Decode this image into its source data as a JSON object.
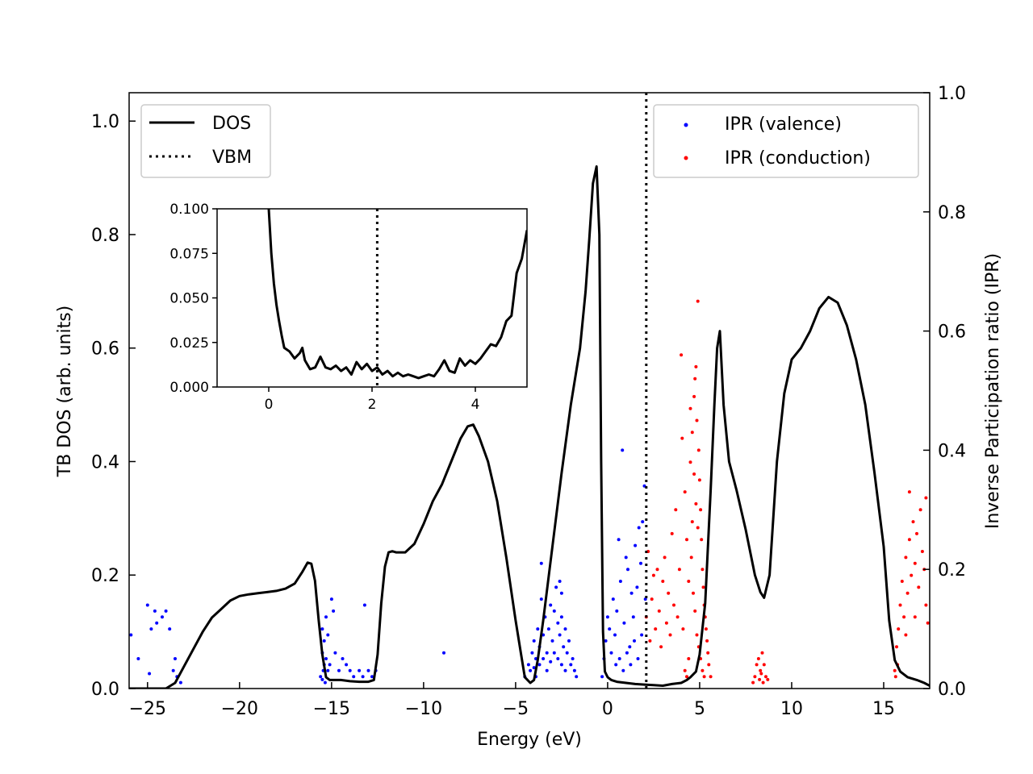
{
  "chart_data": {
    "type": "line",
    "xlabel": "Energy (eV)",
    "ylabel": "TB DOS (arb. units)",
    "y2label": "Inverse Participation ratio (IPR)",
    "xlim": [
      -26,
      17.5
    ],
    "ylim": [
      0,
      1.05
    ],
    "y2lim": [
      0,
      1.0
    ],
    "xticks": [
      -25,
      -20,
      -15,
      -10,
      -5,
      0,
      5,
      10,
      15
    ],
    "xtick_labels": [
      "−25",
      "−20",
      "−15",
      "−10",
      "−5",
      "0",
      "5",
      "10",
      "15"
    ],
    "yticks": [
      0.0,
      0.2,
      0.4,
      0.6,
      0.8,
      1.0
    ],
    "ytick_labels": [
      "0.0",
      "0.2",
      "0.4",
      "0.6",
      "0.8",
      "1.0"
    ],
    "y2ticks": [
      0.0,
      0.2,
      0.4,
      0.6,
      0.8,
      1.0
    ],
    "y2tick_labels": [
      "0.0",
      "0.2",
      "0.4",
      "0.6",
      "0.8",
      "1.0"
    ],
    "vbm": 2.1,
    "legend_left": {
      "placement": "upper-left",
      "entries": [
        {
          "label": "DOS",
          "style": "solid",
          "color": "#000000"
        },
        {
          "label": "VBM",
          "style": "dotted",
          "color": "#000000"
        }
      ]
    },
    "legend_right": {
      "placement": "upper-right",
      "entries": [
        {
          "label": "IPR (valence)",
          "color": "#0000ff"
        },
        {
          "label": "IPR (conduction)",
          "color": "#ff0000"
        }
      ]
    },
    "dos": {
      "x": [
        -26.0,
        -24.0,
        -23.5,
        -23.0,
        -22.5,
        -22.0,
        -21.5,
        -21.0,
        -20.5,
        -20.0,
        -19.5,
        -19.0,
        -18.5,
        -18.0,
        -17.5,
        -17.0,
        -16.6,
        -16.3,
        -16.1,
        -15.9,
        -15.7,
        -15.5,
        -15.3,
        -15.1,
        -14.8,
        -14.5,
        -14.0,
        -13.5,
        -13.0,
        -12.7,
        -12.5,
        -12.3,
        -12.1,
        -11.9,
        -11.7,
        -11.5,
        -11.0,
        -10.5,
        -10.0,
        -9.5,
        -9.0,
        -8.5,
        -8.0,
        -7.6,
        -7.3,
        -7.0,
        -6.5,
        -6.0,
        -5.5,
        -5.0,
        -4.7,
        -4.5,
        -4.2,
        -4.0,
        -3.8,
        -3.5,
        -3.0,
        -2.5,
        -2.0,
        -1.5,
        -1.2,
        -1.0,
        -0.8,
        -0.6,
        -0.45,
        -0.35,
        -0.25,
        -0.15,
        0.0,
        0.2,
        0.5,
        1.0,
        1.5,
        2.0,
        2.5,
        3.0,
        3.5,
        4.0,
        4.3,
        4.5,
        4.8,
        5.0,
        5.3,
        5.6,
        5.8,
        5.95,
        6.1,
        6.3,
        6.6,
        7.0,
        7.5,
        8.0,
        8.3,
        8.5,
        8.8,
        9.2,
        9.6,
        10.0,
        10.5,
        11.0,
        11.5,
        12.0,
        12.5,
        13.0,
        13.5,
        14.0,
        14.5,
        15.0,
        15.3,
        15.6,
        15.9,
        16.3,
        16.8,
        17.2,
        17.5
      ],
      "y": [
        0.0,
        0.0,
        0.01,
        0.04,
        0.07,
        0.1,
        0.125,
        0.14,
        0.155,
        0.163,
        0.166,
        0.168,
        0.17,
        0.172,
        0.176,
        0.185,
        0.205,
        0.222,
        0.22,
        0.19,
        0.12,
        0.06,
        0.02,
        0.015,
        0.015,
        0.015,
        0.013,
        0.012,
        0.012,
        0.015,
        0.06,
        0.15,
        0.215,
        0.24,
        0.242,
        0.24,
        0.24,
        0.255,
        0.29,
        0.33,
        0.36,
        0.4,
        0.44,
        0.462,
        0.465,
        0.445,
        0.4,
        0.33,
        0.23,
        0.12,
        0.06,
        0.02,
        0.01,
        0.015,
        0.05,
        0.12,
        0.25,
        0.38,
        0.5,
        0.6,
        0.7,
        0.79,
        0.89,
        0.92,
        0.8,
        0.4,
        0.1,
        0.03,
        0.02,
        0.015,
        0.012,
        0.01,
        0.008,
        0.007,
        0.006,
        0.005,
        0.008,
        0.01,
        0.015,
        0.02,
        0.03,
        0.06,
        0.15,
        0.35,
        0.5,
        0.6,
        0.63,
        0.5,
        0.4,
        0.35,
        0.28,
        0.2,
        0.17,
        0.16,
        0.2,
        0.4,
        0.52,
        0.58,
        0.6,
        0.63,
        0.67,
        0.69,
        0.68,
        0.64,
        0.58,
        0.5,
        0.38,
        0.25,
        0.12,
        0.05,
        0.03,
        0.02,
        0.015,
        0.01,
        0.005
      ]
    },
    "inset": {
      "xlim": [
        -1,
        5
      ],
      "ylim": [
        0,
        0.1
      ],
      "xticks": [
        0,
        2,
        4
      ],
      "xtick_labels": [
        "0",
        "2",
        "4"
      ],
      "yticks": [
        0.0,
        0.025,
        0.05,
        0.075,
        0.1
      ],
      "ytick_labels": [
        "0.000",
        "0.025",
        "0.050",
        "0.075",
        "0.100"
      ],
      "vbm": 2.1,
      "x": [
        0.0,
        0.05,
        0.1,
        0.15,
        0.2,
        0.25,
        0.3,
        0.4,
        0.5,
        0.6,
        0.65,
        0.7,
        0.8,
        0.9,
        1.0,
        1.1,
        1.2,
        1.3,
        1.4,
        1.5,
        1.6,
        1.7,
        1.8,
        1.9,
        2.0,
        2.1,
        2.2,
        2.3,
        2.4,
        2.5,
        2.6,
        2.7,
        2.8,
        2.9,
        3.0,
        3.1,
        3.2,
        3.3,
        3.4,
        3.5,
        3.6,
        3.7,
        3.8,
        3.9,
        4.0,
        4.1,
        4.2,
        4.3,
        4.4,
        4.5,
        4.6,
        4.7,
        4.8,
        4.9,
        5.0
      ],
      "y": [
        0.1,
        0.075,
        0.058,
        0.046,
        0.037,
        0.029,
        0.022,
        0.02,
        0.016,
        0.019,
        0.022,
        0.015,
        0.01,
        0.011,
        0.017,
        0.011,
        0.01,
        0.012,
        0.009,
        0.011,
        0.007,
        0.014,
        0.01,
        0.013,
        0.009,
        0.011,
        0.007,
        0.009,
        0.006,
        0.008,
        0.006,
        0.007,
        0.006,
        0.005,
        0.006,
        0.007,
        0.006,
        0.01,
        0.015,
        0.009,
        0.008,
        0.016,
        0.012,
        0.015,
        0.013,
        0.016,
        0.02,
        0.024,
        0.023,
        0.028,
        0.037,
        0.04,
        0.064,
        0.072,
        0.088
      ]
    },
    "ipr_valence": {
      "points": [
        [
          -25.9,
          0.09
        ],
        [
          -25.5,
          0.05
        ],
        [
          -25.0,
          0.14
        ],
        [
          -24.8,
          0.1
        ],
        [
          -24.6,
          0.13
        ],
        [
          -24.5,
          0.11
        ],
        [
          -24.2,
          0.12
        ],
        [
          -24.0,
          0.13
        ],
        [
          -23.8,
          0.1
        ],
        [
          -23.6,
          0.03
        ],
        [
          -23.5,
          0.05
        ],
        [
          -23.4,
          0.02
        ],
        [
          -23.2,
          0.01
        ],
        [
          -24.9,
          0.025
        ],
        [
          -15.5,
          0.1
        ],
        [
          -15.4,
          0.08
        ],
        [
          -15.3,
          0.12
        ],
        [
          -15.2,
          0.09
        ],
        [
          -15.0,
          0.15
        ],
        [
          -14.9,
          0.13
        ],
        [
          -15.5,
          0.06
        ],
        [
          -15.4,
          0.04
        ],
        [
          -15.3,
          0.05
        ],
        [
          -15.2,
          0.03
        ],
        [
          -15.1,
          0.04
        ],
        [
          -14.8,
          0.06
        ],
        [
          -14.6,
          0.03
        ],
        [
          -14.4,
          0.05
        ],
        [
          -14.2,
          0.04
        ],
        [
          -14.0,
          0.03
        ],
        [
          -13.8,
          0.02
        ],
        [
          -13.5,
          0.03
        ],
        [
          -13.3,
          0.02
        ],
        [
          -13.2,
          0.14
        ],
        [
          -13.0,
          0.03
        ],
        [
          -12.8,
          0.02
        ],
        [
          -12.6,
          0.03
        ],
        [
          -15.6,
          0.02
        ],
        [
          -15.5,
          0.015
        ],
        [
          -15.45,
          0.03
        ],
        [
          -15.35,
          0.01
        ],
        [
          -8.9,
          0.06
        ],
        [
          -4.5,
          0.02
        ],
        [
          -4.3,
          0.04
        ],
        [
          -4.1,
          0.06
        ],
        [
          -4.0,
          0.08
        ],
        [
          -3.9,
          0.05
        ],
        [
          -3.8,
          0.1
        ],
        [
          -3.7,
          0.07
        ],
        [
          -3.6,
          0.21
        ],
        [
          -3.5,
          0.09
        ],
        [
          -3.4,
          0.12
        ],
        [
          -3.3,
          0.06
        ],
        [
          -3.2,
          0.1
        ],
        [
          -3.1,
          0.14
        ],
        [
          -3.0,
          0.08
        ],
        [
          -2.9,
          0.13
        ],
        [
          -2.8,
          0.17
        ],
        [
          -2.7,
          0.11
        ],
        [
          -2.6,
          0.09
        ],
        [
          -2.5,
          0.12
        ],
        [
          -2.4,
          0.07
        ],
        [
          -2.3,
          0.1
        ],
        [
          -2.2,
          0.06
        ],
        [
          -2.1,
          0.08
        ],
        [
          -2.0,
          0.04
        ],
        [
          -1.9,
          0.05
        ],
        [
          -1.8,
          0.03
        ],
        [
          -1.7,
          0.02
        ],
        [
          -4.2,
          0.03
        ],
        [
          -4.0,
          0.035
        ],
        [
          -3.9,
          0.02
        ],
        [
          -3.7,
          0.04
        ],
        [
          -3.5,
          0.05
        ],
        [
          -3.3,
          0.03
        ],
        [
          -3.1,
          0.045
        ],
        [
          -2.9,
          0.06
        ],
        [
          -2.7,
          0.05
        ],
        [
          -2.5,
          0.04
        ],
        [
          -2.3,
          0.03
        ],
        [
          -3.6,
          0.15
        ],
        [
          -2.6,
          0.18
        ],
        [
          -2.5,
          0.16
        ],
        [
          -0.3,
          0.02
        ],
        [
          -0.2,
          0.05
        ],
        [
          -0.1,
          0.08
        ],
        [
          0.0,
          0.12
        ],
        [
          0.1,
          0.1
        ],
        [
          0.2,
          0.06
        ],
        [
          0.3,
          0.15
        ],
        [
          0.4,
          0.09
        ],
        [
          0.5,
          0.13
        ],
        [
          0.6,
          0.25
        ],
        [
          0.7,
          0.18
        ],
        [
          0.8,
          0.4
        ],
        [
          0.9,
          0.11
        ],
        [
          1.0,
          0.22
        ],
        [
          1.1,
          0.2
        ],
        [
          1.2,
          0.07
        ],
        [
          1.3,
          0.16
        ],
        [
          1.4,
          0.12
        ],
        [
          1.5,
          0.24
        ],
        [
          1.6,
          0.17
        ],
        [
          1.7,
          0.27
        ],
        [
          1.8,
          0.21
        ],
        [
          1.9,
          0.28
        ],
        [
          2.0,
          0.34
        ],
        [
          2.05,
          0.15
        ],
        [
          0.45,
          0.04
        ],
        [
          0.65,
          0.05
        ],
        [
          0.85,
          0.03
        ],
        [
          1.05,
          0.06
        ],
        [
          1.25,
          0.04
        ],
        [
          1.45,
          0.08
        ],
        [
          1.65,
          0.05
        ],
        [
          1.85,
          0.09
        ]
      ]
    },
    "ipr_conduction": {
      "points": [
        [
          2.1,
          0.12
        ],
        [
          2.2,
          0.23
        ],
        [
          2.3,
          0.08
        ],
        [
          2.4,
          0.15
        ],
        [
          2.5,
          0.19
        ],
        [
          2.6,
          0.1
        ],
        [
          2.7,
          0.2
        ],
        [
          2.8,
          0.13
        ],
        [
          2.9,
          0.07
        ],
        [
          3.0,
          0.18
        ],
        [
          3.1,
          0.22
        ],
        [
          3.2,
          0.11
        ],
        [
          3.3,
          0.16
        ],
        [
          3.4,
          0.09
        ],
        [
          3.5,
          0.26
        ],
        [
          3.6,
          0.14
        ],
        [
          3.7,
          0.3
        ],
        [
          3.8,
          0.12
        ],
        [
          3.9,
          0.2
        ],
        [
          4.0,
          0.56
        ],
        [
          4.05,
          0.42
        ],
        [
          4.1,
          0.1
        ],
        [
          4.2,
          0.33
        ],
        [
          4.3,
          0.25
        ],
        [
          4.4,
          0.18
        ],
        [
          4.5,
          0.38
        ],
        [
          4.6,
          0.28
        ],
        [
          4.7,
          0.49
        ],
        [
          4.75,
          0.52
        ],
        [
          4.8,
          0.54
        ],
        [
          4.85,
          0.45
        ],
        [
          4.9,
          0.65
        ],
        [
          4.95,
          0.4
        ],
        [
          5.0,
          0.35
        ],
        [
          5.05,
          0.3
        ],
        [
          5.1,
          0.25
        ],
        [
          5.15,
          0.2
        ],
        [
          5.2,
          0.17
        ],
        [
          5.25,
          0.14
        ],
        [
          5.3,
          0.12
        ],
        [
          5.35,
          0.1
        ],
        [
          5.4,
          0.08
        ],
        [
          5.45,
          0.06
        ],
        [
          5.5,
          0.04
        ],
        [
          5.6,
          0.02
        ],
        [
          4.5,
          0.47
        ],
        [
          4.6,
          0.43
        ],
        [
          4.7,
          0.36
        ],
        [
          4.8,
          0.31
        ],
        [
          4.9,
          0.27
        ],
        [
          4.55,
          0.22
        ],
        [
          4.65,
          0.16
        ],
        [
          4.75,
          0.13
        ],
        [
          4.85,
          0.09
        ],
        [
          4.95,
          0.07
        ],
        [
          5.05,
          0.05
        ],
        [
          5.15,
          0.03
        ],
        [
          5.25,
          0.02
        ],
        [
          4.4,
          0.05
        ],
        [
          4.3,
          0.02
        ],
        [
          4.2,
          0.03
        ],
        [
          8.0,
          0.02
        ],
        [
          8.1,
          0.04
        ],
        [
          8.2,
          0.05
        ],
        [
          8.3,
          0.03
        ],
        [
          8.4,
          0.06
        ],
        [
          8.5,
          0.04
        ],
        [
          8.6,
          0.02
        ],
        [
          8.7,
          0.015
        ],
        [
          7.9,
          0.01
        ],
        [
          8.25,
          0.015
        ],
        [
          8.35,
          0.025
        ],
        [
          8.45,
          0.01
        ],
        [
          15.6,
          0.03
        ],
        [
          15.7,
          0.07
        ],
        [
          15.8,
          0.1
        ],
        [
          15.9,
          0.14
        ],
        [
          16.0,
          0.18
        ],
        [
          16.1,
          0.12
        ],
        [
          16.2,
          0.22
        ],
        [
          16.3,
          0.16
        ],
        [
          16.4,
          0.25
        ],
        [
          16.5,
          0.19
        ],
        [
          16.6,
          0.28
        ],
        [
          16.7,
          0.21
        ],
        [
          16.8,
          0.26
        ],
        [
          16.9,
          0.17
        ],
        [
          17.0,
          0.3
        ],
        [
          17.1,
          0.23
        ],
        [
          17.2,
          0.2
        ],
        [
          17.3,
          0.14
        ],
        [
          17.4,
          0.11
        ],
        [
          16.4,
          0.33
        ],
        [
          17.3,
          0.32
        ],
        [
          16.7,
          0.12
        ],
        [
          16.2,
          0.09
        ],
        [
          15.75,
          0.04
        ],
        [
          15.65,
          0.02
        ]
      ]
    }
  }
}
